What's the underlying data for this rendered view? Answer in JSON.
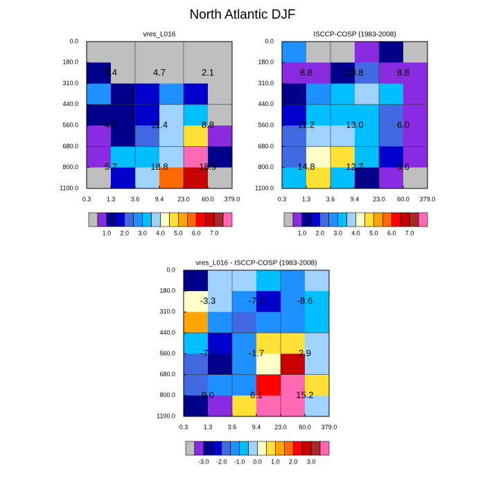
{
  "title": "North Atlantic DJF",
  "chart_data": [
    {
      "type": "heatmap",
      "title": "vres_L016",
      "x_edges": [
        "0.3",
        "1.3",
        "3.6",
        "9.4",
        "23.0",
        "60.0",
        "379.0"
      ],
      "y_edges": [
        "0.0",
        "180.0",
        "310.0",
        "440.0",
        "560.0",
        "680.0",
        "800.0",
        "1100.0"
      ],
      "values": [
        [
          0.25,
          0.25,
          0.25,
          0.25,
          0.25,
          0.25
        ],
        [
          1.25,
          0.25,
          0.25,
          0.25,
          0.25,
          0.25
        ],
        [
          2.75,
          1.25,
          1.75,
          2.75,
          1.75,
          0.25
        ],
        [
          1.25,
          1.25,
          1.75,
          3.75,
          3.25,
          0.25
        ],
        [
          0.75,
          1.25,
          2.25,
          3.75,
          4.75,
          0.75
        ],
        [
          0.75,
          3.25,
          3.25,
          3.75,
          7.75,
          1.25
        ],
        [
          0.25,
          1.75,
          3.75,
          5.75,
          6.75,
          0.25
        ]
      ],
      "summary": {
        "values": [
          [
            5.4,
            4.7,
            2.1
          ],
          [
            4.0,
            11.4,
            8.8
          ],
          [
            5.7,
            18.8,
            18.9
          ]
        ],
        "value_labels": [
          [
            "5.4",
            "4.7",
            "2.1"
          ],
          [
            "4.0",
            "11.4",
            "8.8"
          ],
          [
            "5.7",
            "18.8",
            "18.9"
          ]
        ]
      },
      "colorbar": {
        "levels": [
          0.5,
          1.0,
          1.5,
          2.0,
          2.5,
          3.0,
          3.5,
          4.0,
          4.5,
          5.0,
          5.5,
          6.0,
          6.5,
          7.0,
          7.5
        ],
        "colors": [
          "#bebebe",
          "#8a2be2",
          "#00008b",
          "#0000cd",
          "#4169e1",
          "#1e90ff",
          "#00bfff",
          "#a0d2ff",
          "#ffffc8",
          "#ffe135",
          "#ffa500",
          "#ff6a00",
          "#ff0000",
          "#c80000",
          "#a52a2a",
          "#ff69b4"
        ],
        "ticks": [
          {
            "value": 1,
            "label": "1.0"
          },
          {
            "value": 2,
            "label": "2.0"
          },
          {
            "value": 3,
            "label": "3.0"
          },
          {
            "value": 4,
            "label": "4.0"
          },
          {
            "value": 5,
            "label": "5.0"
          },
          {
            "value": 6,
            "label": "6.0"
          },
          {
            "value": 7,
            "label": "7.0"
          }
        ]
      }
    },
    {
      "type": "heatmap",
      "title": "ISCCP-COSP (1983-2008)",
      "x_edges": [
        "0.3",
        "1.3",
        "3.6",
        "9.4",
        "23.0",
        "60.0",
        "379.0"
      ],
      "y_edges": [
        "0.0",
        "180.0",
        "310.0",
        "440.0",
        "560.0",
        "680.0",
        "800.0",
        "1100.0"
      ],
      "values": [
        [
          2.75,
          0.25,
          0.25,
          0.75,
          1.25,
          0.25
        ],
        [
          0.75,
          0.75,
          1.25,
          2.25,
          0.75,
          0.75
        ],
        [
          1.25,
          2.75,
          3.25,
          3.75,
          3.25,
          0.75
        ],
        [
          1.75,
          3.25,
          3.25,
          3.25,
          2.25,
          0.75
        ],
        [
          2.25,
          3.75,
          3.75,
          3.25,
          2.25,
          0.75
        ],
        [
          2.25,
          4.25,
          4.75,
          3.25,
          1.75,
          0.75
        ],
        [
          3.25,
          4.75,
          3.25,
          1.25,
          0.75,
          0.25
        ]
      ],
      "summary": {
        "values": [
          [
            8.8,
            13.8,
            8.8
          ],
          [
            11.2,
            13.0,
            6.0
          ],
          [
            14.8,
            12.7,
            3.6
          ]
        ],
        "value_labels": [
          [
            "8.8",
            "13.8",
            "8.8"
          ],
          [
            "11.2",
            "13.0",
            "6.0"
          ],
          [
            "14.8",
            "12.7",
            "3.6"
          ]
        ]
      },
      "colorbar": {
        "levels": [
          0.5,
          1.0,
          1.5,
          2.0,
          2.5,
          3.0,
          3.5,
          4.0,
          4.5,
          5.0,
          5.5,
          6.0,
          6.5,
          7.0,
          7.5
        ],
        "colors": [
          "#bebebe",
          "#8a2be2",
          "#00008b",
          "#0000cd",
          "#4169e1",
          "#1e90ff",
          "#00bfff",
          "#a0d2ff",
          "#ffffc8",
          "#ffe135",
          "#ffa500",
          "#ff6a00",
          "#ff0000",
          "#c80000",
          "#a52a2a",
          "#ff69b4"
        ],
        "ticks": [
          {
            "value": 1,
            "label": "1.0"
          },
          {
            "value": 2,
            "label": "2.0"
          },
          {
            "value": 3,
            "label": "3.0"
          },
          {
            "value": 4,
            "label": "4.0"
          },
          {
            "value": 5,
            "label": "5.0"
          },
          {
            "value": 6,
            "label": "6.0"
          },
          {
            "value": 7,
            "label": "7.0"
          }
        ]
      }
    },
    {
      "type": "heatmap",
      "title": "vres_L016 - ISCCP-COSP (1983-2008)",
      "x_edges": [
        "0.3",
        "1.3",
        "3.6",
        "9.4",
        "23.0",
        "60.0",
        "379.0"
      ],
      "y_edges": [
        "0.0",
        "180.0",
        "310.0",
        "440.0",
        "560.0",
        "680.0",
        "800.0",
        "1100.0"
      ],
      "values": [
        [
          -2.75,
          -0.25,
          -0.25,
          -0.75,
          -1.25,
          -0.25
        ],
        [
          0.25,
          -0.25,
          -1.25,
          -2.25,
          -1.25,
          -0.75
        ],
        [
          1.25,
          -1.25,
          -1.75,
          -1.25,
          -1.25,
          -0.75
        ],
        [
          -0.75,
          -2.25,
          -1.25,
          0.75,
          0.75,
          -0.25
        ],
        [
          -1.75,
          -2.75,
          -1.25,
          0.25,
          2.75,
          -0.25
        ],
        [
          -1.75,
          -1.25,
          -1.25,
          2.25,
          3.75,
          0.75
        ],
        [
          -2.75,
          -3.25,
          0.75,
          3.75,
          3.75,
          -0.25
        ]
      ],
      "summary": {
        "values": [
          [
            -3.3,
            -7.2,
            -8.6
          ],
          [
            -7.2,
            -1.7,
            2.9
          ],
          [
            9.0,
            6.1,
            15.2
          ]
        ],
        "value_labels": [
          [
            "-3.3",
            "-7.2",
            "-8.6"
          ],
          [
            "-7.2",
            "-1.7",
            "2.9"
          ],
          [
            "9.0",
            "6.1",
            "15.2"
          ]
        ]
      },
      "colorbar": {
        "levels": [
          -3.5,
          -3.0,
          -2.5,
          -2.0,
          -1.5,
          -1.0,
          -0.5,
          0.0,
          0.5,
          1.0,
          1.5,
          2.0,
          2.5,
          3.0,
          3.5
        ],
        "colors": [
          "#bebebe",
          "#8a2be2",
          "#00008b",
          "#0000cd",
          "#4169e1",
          "#1e90ff",
          "#00bfff",
          "#a0d2ff",
          "#ffffc8",
          "#ffe135",
          "#ffa500",
          "#ff6a00",
          "#ff0000",
          "#c80000",
          "#a52a2a",
          "#ff69b4"
        ],
        "ticks": [
          {
            "value": -3,
            "label": "-3.0"
          },
          {
            "value": -2,
            "label": "-2.0"
          },
          {
            "value": -1,
            "label": "-1.0"
          },
          {
            "value": 0,
            "label": "0.0"
          },
          {
            "value": 1,
            "label": "1.0"
          },
          {
            "value": 2,
            "label": "2.0"
          },
          {
            "value": 3,
            "label": "3.0"
          }
        ]
      }
    }
  ]
}
